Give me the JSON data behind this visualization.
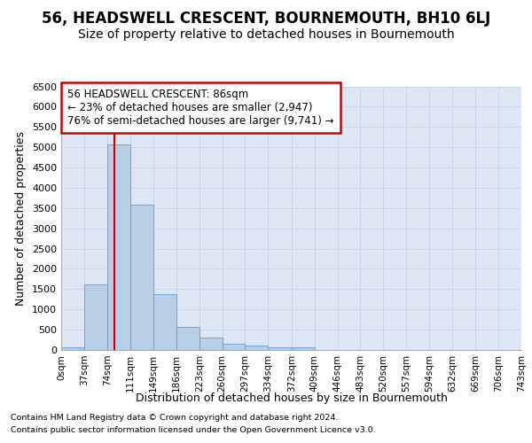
{
  "title": "56, HEADSWELL CRESCENT, BOURNEMOUTH, BH10 6LJ",
  "subtitle": "Size of property relative to detached houses in Bournemouth",
  "xlabel": "Distribution of detached houses by size in Bournemouth",
  "ylabel": "Number of detached properties",
  "bin_edges": [
    0,
    37,
    74,
    111,
    149,
    186,
    223,
    260,
    297,
    334,
    372,
    409,
    446,
    483,
    520,
    557,
    594,
    632,
    669,
    706,
    743
  ],
  "bar_heights": [
    75,
    1625,
    5075,
    3575,
    1375,
    575,
    300,
    150,
    100,
    75,
    75,
    0,
    0,
    0,
    0,
    0,
    0,
    0,
    0,
    0
  ],
  "bar_color": "#b8cfe8",
  "bar_edgecolor": "#6699cc",
  "property_size": 86,
  "vline_color": "#cc0000",
  "annotation_text": "56 HEADSWELL CRESCENT: 86sqm\n← 23% of detached houses are smaller (2,947)\n76% of semi-detached houses are larger (9,741) →",
  "annotation_boxcolor": "#ffffff",
  "annotation_edgecolor": "#cc0000",
  "ylim": [
    0,
    6500
  ],
  "yticks": [
    0,
    500,
    1000,
    1500,
    2000,
    2500,
    3000,
    3500,
    4000,
    4500,
    5000,
    5500,
    6000,
    6500
  ],
  "grid_color": "#c8d4e8",
  "bg_color": "#dce6f5",
  "title_fontsize": 12,
  "subtitle_fontsize": 10,
  "footer_line1": "Contains HM Land Registry data © Crown copyright and database right 2024.",
  "footer_line2": "Contains public sector information licensed under the Open Government Licence v3.0."
}
